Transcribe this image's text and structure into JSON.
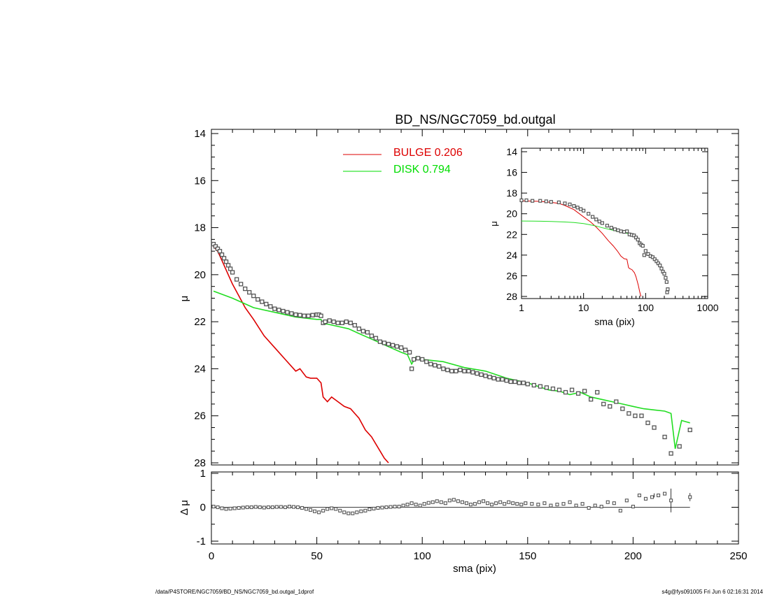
{
  "title": "BD_NS/NGC7059_bd.outgal",
  "footer": {
    "left": "/data/P4STORE/NGC7059/BD_NS/NGC7059_bd.outgal_1dprof",
    "right": "s4g@fys091005  Fri Jun  6 02:16:31 2014"
  },
  "legend": {
    "bulge": {
      "label": "BULGE  0.206",
      "color": "#dd0000"
    },
    "disk": {
      "label": "DISK  0.794",
      "color": "#00dd00"
    }
  },
  "colors": {
    "bulge": "#dd0000",
    "disk": "#22dd22",
    "data": "#555555",
    "axis": "#000000"
  },
  "chart_data": [
    {
      "id": "main",
      "type": "scatter",
      "xlabel": "sma (pix)",
      "ylabel": "μ",
      "xlim": [
        0,
        250
      ],
      "ylim": [
        28,
        14
      ],
      "y_inverted": true,
      "xticks": [
        "0",
        "50",
        "100",
        "150",
        "200",
        "250"
      ],
      "yticks": [
        "14",
        "16",
        "18",
        "20",
        "22",
        "24",
        "26",
        "28"
      ],
      "series": [
        {
          "name": "BULGE  0.206",
          "kind": "line",
          "x": [
            1,
            3,
            5,
            8,
            10,
            13,
            16,
            20,
            25,
            30,
            35,
            40,
            42,
            45,
            47,
            50,
            52,
            53,
            55,
            57,
            60,
            63,
            66,
            70,
            73,
            76,
            80,
            82,
            84
          ],
          "y": [
            18.8,
            19.0,
            19.4,
            20.0,
            20.4,
            20.9,
            21.4,
            21.9,
            22.6,
            23.1,
            23.6,
            24.1,
            24.0,
            24.35,
            24.4,
            24.4,
            24.6,
            25.2,
            25.4,
            25.2,
            25.4,
            25.6,
            25.7,
            26.1,
            26.6,
            26.9,
            27.5,
            27.8,
            28.0
          ]
        },
        {
          "name": "DISK  0.794",
          "kind": "line",
          "x": [
            1,
            10,
            20,
            30,
            40,
            50,
            52,
            53,
            55,
            60,
            65,
            70,
            75,
            80,
            85,
            90,
            93,
            95,
            97,
            100,
            110,
            120,
            130,
            140,
            150,
            160,
            165,
            170,
            175,
            180,
            185,
            190,
            195,
            200,
            205,
            210,
            215,
            218,
            220,
            223,
            225,
            227
          ],
          "y": [
            20.7,
            21.0,
            21.4,
            21.6,
            21.8,
            21.9,
            21.9,
            22.1,
            22.1,
            22.2,
            22.3,
            22.5,
            22.7,
            22.9,
            23.1,
            23.3,
            23.4,
            23.8,
            23.5,
            23.6,
            23.7,
            23.95,
            24.1,
            24.4,
            24.6,
            24.9,
            24.95,
            25.1,
            25.0,
            25.2,
            25.3,
            25.4,
            25.5,
            25.6,
            25.7,
            25.75,
            25.8,
            25.9,
            27.4,
            26.2,
            26.25,
            26.3
          ]
        },
        {
          "name": "",
          "kind": "points",
          "x": [
            1,
            2,
            3,
            4,
            5,
            6,
            7,
            8,
            9,
            10,
            12,
            14,
            16,
            18,
            20,
            22,
            24,
            26,
            28,
            30,
            32,
            34,
            36,
            38,
            40,
            42,
            44,
            46,
            48,
            50,
            51,
            52,
            53,
            54,
            56,
            58,
            60,
            62,
            64,
            66,
            68,
            70,
            72,
            74,
            76,
            78,
            80,
            82,
            84,
            86,
            88,
            90,
            92,
            94,
            95,
            96,
            98,
            100,
            102,
            104,
            106,
            108,
            110,
            112,
            114,
            116,
            118,
            120,
            122,
            124,
            126,
            128,
            130,
            132,
            134,
            136,
            138,
            140,
            142,
            144,
            146,
            148,
            150,
            153,
            156,
            159,
            162,
            165,
            168,
            171,
            174,
            177,
            180,
            183,
            186,
            189,
            192,
            195,
            198,
            201,
            204,
            207,
            210,
            215,
            218,
            222,
            227
          ],
          "y": [
            18.7,
            18.8,
            18.9,
            19.0,
            19.15,
            19.3,
            19.45,
            19.6,
            19.75,
            19.9,
            20.2,
            20.4,
            20.6,
            20.75,
            20.9,
            21.05,
            21.15,
            21.25,
            21.35,
            21.45,
            21.5,
            21.55,
            21.6,
            21.65,
            21.7,
            21.72,
            21.75,
            21.75,
            21.72,
            21.7,
            21.7,
            21.75,
            22.05,
            22.0,
            21.95,
            22.0,
            22.05,
            22.05,
            22.0,
            22.05,
            22.15,
            22.3,
            22.4,
            22.45,
            22.6,
            22.7,
            22.85,
            22.9,
            22.95,
            23.0,
            23.05,
            23.1,
            23.2,
            23.3,
            24.0,
            23.6,
            23.55,
            23.6,
            23.7,
            23.8,
            23.85,
            23.9,
            24.0,
            24.05,
            24.1,
            24.1,
            24.05,
            24.1,
            24.1,
            24.15,
            24.2,
            24.25,
            24.3,
            24.35,
            24.4,
            24.45,
            24.45,
            24.5,
            24.55,
            24.55,
            24.6,
            24.6,
            24.65,
            24.7,
            24.75,
            24.8,
            24.85,
            24.9,
            25.0,
            24.9,
            25.05,
            24.95,
            25.3,
            25.0,
            25.5,
            25.6,
            25.4,
            25.7,
            25.9,
            26.0,
            26.0,
            26.3,
            26.5,
            26.9,
            27.6,
            27.3,
            26.6
          ]
        }
      ]
    },
    {
      "id": "residual",
      "type": "scatter",
      "xlabel": "sma (pix)",
      "ylabel": "Δ μ",
      "xlim": [
        0,
        250
      ],
      "ylim": [
        -1,
        1
      ],
      "yticks": [
        "-1",
        "0",
        "1"
      ],
      "series": [
        {
          "name": "",
          "kind": "points",
          "x": [
            1,
            3,
            5,
            7,
            9,
            11,
            13,
            15,
            17,
            19,
            21,
            23,
            25,
            27,
            29,
            31,
            33,
            35,
            37,
            39,
            41,
            43,
            45,
            47,
            49,
            51,
            53,
            55,
            57,
            59,
            61,
            63,
            65,
            67,
            69,
            71,
            73,
            75,
            77,
            79,
            81,
            83,
            85,
            87,
            89,
            91,
            93,
            95,
            97,
            99,
            101,
            103,
            105,
            107,
            109,
            111,
            113,
            115,
            117,
            119,
            121,
            123,
            125,
            127,
            129,
            131,
            133,
            135,
            137,
            139,
            141,
            143,
            145,
            147,
            149,
            152,
            155,
            158,
            161,
            164,
            167,
            170,
            173,
            176,
            179,
            182,
            185,
            188,
            191,
            194,
            197,
            200,
            203,
            206,
            209,
            212,
            215,
            218,
            227
          ],
          "y": [
            0.02,
            0.0,
            -0.03,
            -0.05,
            -0.04,
            -0.03,
            -0.02,
            -0.01,
            0.0,
            0.0,
            0.01,
            0.0,
            -0.01,
            0.0,
            0.0,
            0.01,
            0.01,
            0.0,
            0.02,
            0.01,
            0.0,
            -0.02,
            -0.05,
            -0.08,
            -0.12,
            -0.15,
            -0.1,
            -0.05,
            -0.03,
            -0.05,
            -0.1,
            -0.15,
            -0.18,
            -0.18,
            -0.15,
            -0.12,
            -0.1,
            -0.06,
            -0.04,
            -0.02,
            -0.01,
            0.0,
            0.01,
            0.02,
            0.02,
            0.05,
            0.08,
            0.12,
            0.08,
            0.05,
            0.1,
            0.13,
            0.15,
            0.18,
            0.15,
            0.12,
            0.2,
            0.22,
            0.18,
            0.15,
            0.12,
            0.08,
            0.1,
            0.15,
            0.18,
            0.12,
            0.08,
            0.12,
            0.15,
            0.1,
            0.15,
            0.12,
            0.1,
            0.08,
            0.12,
            0.1,
            0.08,
            0.12,
            0.05,
            0.08,
            0.1,
            0.15,
            0.05,
            0.1,
            -0.02,
            0.05,
            0.02,
            0.15,
            0.12,
            -0.1,
            0.2,
            0.02,
            0.35,
            0.25,
            0.3,
            0.35,
            0.4,
            0.2,
            0.3
          ]
        }
      ]
    },
    {
      "id": "inset",
      "type": "scatter",
      "xlabel": "sma (pix)",
      "ylabel": "μ",
      "xscale": "log",
      "xlim": [
        1,
        1000
      ],
      "ylim": [
        28,
        14
      ],
      "y_inverted": true,
      "xticks": [
        "1",
        "10",
        "100",
        "1000"
      ],
      "yticks": [
        "14",
        "16",
        "18",
        "20",
        "22",
        "24",
        "26",
        "28"
      ],
      "series": [
        {
          "name": "BULGE  0.206",
          "kind": "line",
          "x": [
            1,
            2,
            3,
            4,
            5,
            7,
            10,
            13,
            16,
            20,
            25,
            30,
            35,
            40,
            45,
            50,
            53,
            55,
            60,
            66,
            70,
            76,
            80,
            84
          ],
          "y": [
            18.75,
            18.8,
            18.9,
            19.0,
            19.2,
            19.6,
            20.3,
            20.8,
            21.3,
            21.9,
            22.6,
            23.1,
            23.6,
            24.1,
            24.35,
            24.4,
            25.2,
            25.3,
            25.4,
            25.7,
            26.1,
            26.9,
            27.5,
            28.0
          ]
        },
        {
          "name": "DISK  0.794",
          "kind": "line",
          "x": [
            1,
            2,
            3,
            5,
            7,
            10,
            15,
            20,
            30,
            40,
            50,
            60
          ],
          "y": [
            20.7,
            20.72,
            20.75,
            20.8,
            20.85,
            20.95,
            21.15,
            21.35,
            21.6,
            21.8,
            21.9,
            22.0
          ]
        },
        {
          "name": "",
          "kind": "points",
          "x": [
            1,
            1.2,
            1.5,
            2,
            2.5,
            3,
            4,
            5,
            6,
            7,
            8,
            9,
            10,
            12,
            14,
            16,
            18,
            20,
            24,
            28,
            32,
            36,
            40,
            45,
            50,
            55,
            60,
            65,
            70,
            75,
            80,
            85,
            90,
            95,
            100,
            110,
            120,
            130,
            140,
            150,
            160,
            170,
            180,
            190,
            200,
            210,
            218,
            222,
            227
          ],
          "y": [
            18.7,
            18.7,
            18.75,
            18.75,
            18.8,
            18.85,
            18.9,
            19.0,
            19.1,
            19.25,
            19.4,
            19.55,
            19.7,
            20.0,
            20.3,
            20.55,
            20.75,
            20.9,
            21.15,
            21.35,
            21.5,
            21.6,
            21.7,
            21.75,
            21.7,
            22.0,
            22.05,
            22.1,
            22.3,
            22.5,
            22.85,
            23.0,
            23.1,
            24.0,
            23.6,
            23.9,
            24.1,
            24.2,
            24.4,
            24.6,
            24.8,
            25.0,
            25.3,
            25.6,
            25.8,
            26.2,
            26.6,
            27.6,
            27.3
          ]
        }
      ]
    }
  ]
}
